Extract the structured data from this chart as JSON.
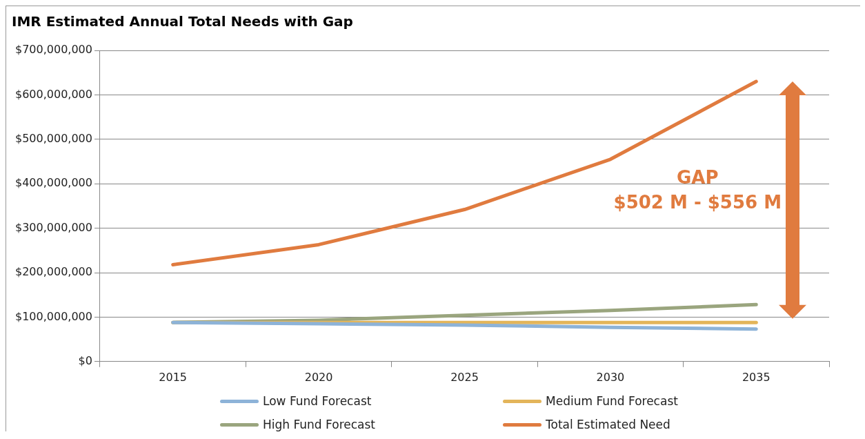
{
  "chart_data": {
    "type": "line",
    "title": "IMR Estimated Annual Total Needs with Gap",
    "categories": [
      "2015",
      "2020",
      "2025",
      "2030",
      "2035"
    ],
    "series": [
      {
        "name": "Low Fund Forecast",
        "color": "#8db3d8",
        "values": [
          88000000,
          85000000,
          82000000,
          77000000,
          73000000
        ]
      },
      {
        "name": "Medium Fund Forecast",
        "color": "#e3b55a",
        "values": [
          88000000,
          88000000,
          88000000,
          88000000,
          88000000
        ]
      },
      {
        "name": "High Fund Forecast",
        "color": "#9aa57e",
        "values": [
          88000000,
          93000000,
          104000000,
          115000000,
          128000000
        ]
      },
      {
        "name": "Total Estimated Need",
        "color": "#e07b3f",
        "values": [
          218000000,
          263000000,
          342000000,
          455000000,
          630000000
        ]
      }
    ],
    "ylim": [
      0,
      700000000
    ],
    "yticks": [
      {
        "value": 0,
        "label": "$0"
      },
      {
        "value": 100000000,
        "label": "$100,000,000"
      },
      {
        "value": 200000000,
        "label": "$200,000,000"
      },
      {
        "value": 300000000,
        "label": "$300,000,000"
      },
      {
        "value": 400000000,
        "label": "$400,000,000"
      },
      {
        "value": 500000000,
        "label": "$500,000,000"
      },
      {
        "value": 600000000,
        "label": "$600,000,000"
      },
      {
        "value": 700000000,
        "label": "$700,000,000"
      }
    ],
    "annotations": [
      "GAP",
      "$502 M - $556 M"
    ],
    "grid": "y",
    "legend": "bottom",
    "marker": "none",
    "line_style": "solid"
  }
}
